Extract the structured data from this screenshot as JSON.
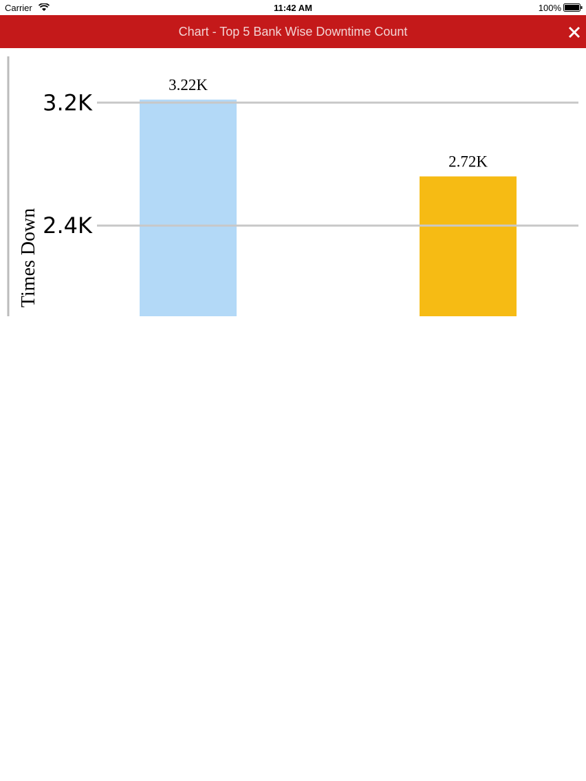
{
  "status_bar": {
    "carrier": "Carrier",
    "time": "11:42 AM",
    "battery": "100%"
  },
  "header": {
    "title": "Chart - Top 5 Bank Wise Downtime Count"
  },
  "chart_data": {
    "type": "bar",
    "y_label": "Times Down",
    "categories": [
      null,
      null
    ],
    "values": [
      3220,
      2720
    ],
    "value_labels": [
      "3.22K",
      "2.72K"
    ],
    "colors": [
      "#b3d9f7",
      "#f6bb14"
    ],
    "ylim": [
      1810,
      3510
    ],
    "yticks": [
      {
        "value": 2400,
        "label": "2.4K"
      },
      {
        "value": 3200,
        "label": "3.2K"
      }
    ],
    "grid": true
  }
}
